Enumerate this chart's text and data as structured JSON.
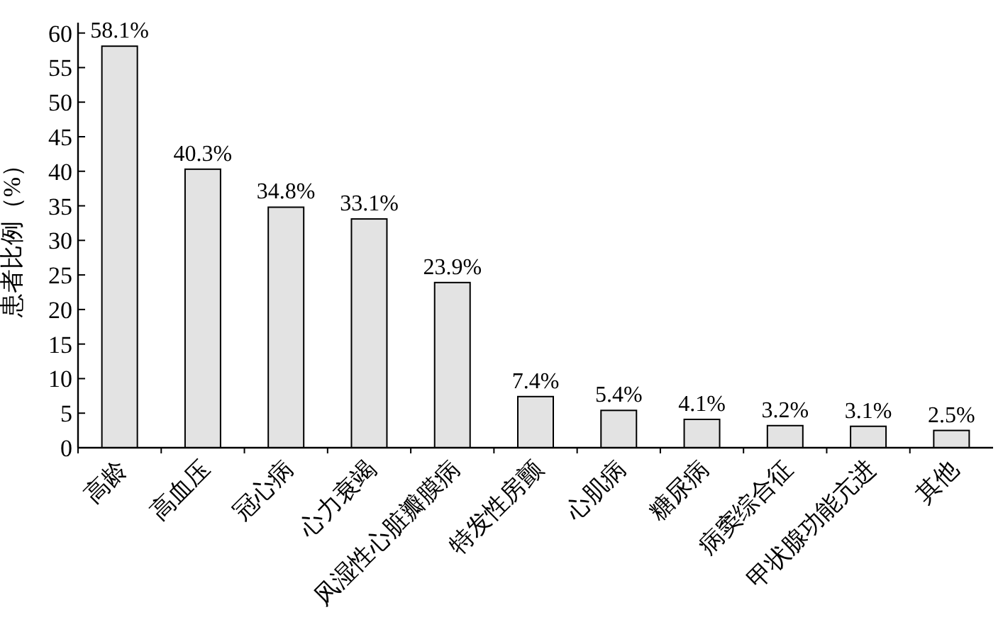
{
  "chart_data": {
    "type": "bar",
    "categories": [
      "高龄",
      "高血压",
      "冠心病",
      "心力衰竭",
      "风湿性心脏瓣膜病",
      "特发性房颤",
      "心肌病",
      "糖尿病",
      "病窦综合征",
      "甲状腺功能亢进",
      "其他"
    ],
    "values": [
      58.1,
      40.3,
      34.8,
      33.1,
      23.9,
      7.4,
      5.4,
      4.1,
      3.2,
      3.1,
      2.5
    ],
    "value_labels": [
      "58.1%",
      "40.3%",
      "34.8%",
      "33.1%",
      "23.9%",
      "7.4%",
      "5.4%",
      "4.1%",
      "3.2%",
      "3.1%",
      "2.5%"
    ],
    "color": "#e3e3e3",
    "ylabel": "患者比例（%）",
    "ylim": [
      0,
      61.5
    ],
    "yticks": [
      0,
      5,
      10,
      15,
      20,
      25,
      30,
      35,
      40,
      45,
      50,
      55,
      60
    ]
  }
}
